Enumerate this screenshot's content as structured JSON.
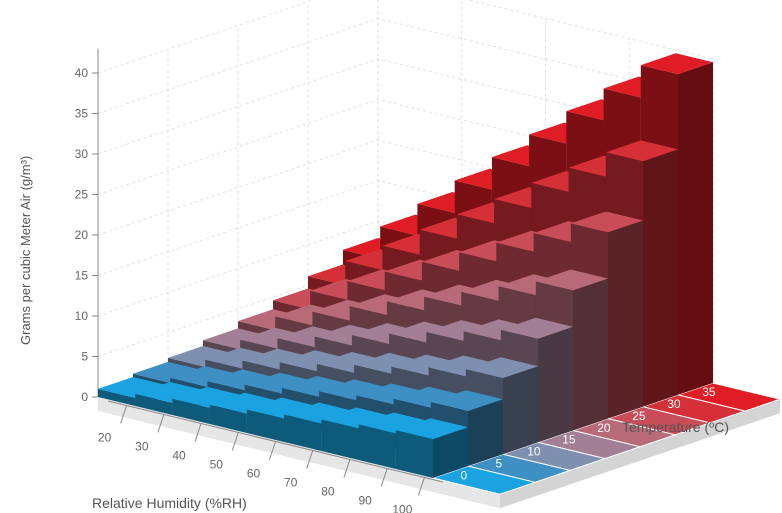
{
  "chart_data": {
    "type": "bar",
    "ylabel": "Grams per cubic Meter Air (g/m³)",
    "xlabel": "Relative Humidity (%RH)",
    "zlabel": "Temperature (ºC)",
    "ylim": [
      0,
      40
    ],
    "y_ticks": [
      "0",
      "5",
      "10",
      "15",
      "20",
      "25",
      "30",
      "35",
      "40"
    ],
    "categories": [
      "20",
      "30",
      "40",
      "50",
      "60",
      "70",
      "80",
      "90",
      "100"
    ],
    "series": [
      {
        "name": "0",
        "color": "#1aa3e0",
        "values": [
          1.0,
          1.5,
          2.0,
          2.4,
          2.9,
          3.4,
          3.9,
          4.4,
          4.8
        ]
      },
      {
        "name": "5",
        "color": "#3d8fc4",
        "values": [
          1.4,
          2.0,
          2.7,
          3.4,
          4.1,
          4.8,
          5.4,
          6.1,
          6.8
        ]
      },
      {
        "name": "10",
        "color": "#7f8fb0",
        "values": [
          1.9,
          2.8,
          3.8,
          4.7,
          5.6,
          6.6,
          7.5,
          8.5,
          9.4
        ]
      },
      {
        "name": "15",
        "color": "#a27f95",
        "values": [
          2.6,
          3.8,
          5.1,
          6.4,
          7.7,
          9.0,
          10.3,
          11.5,
          12.8
        ]
      },
      {
        "name": "20",
        "color": "#b86a78",
        "values": [
          3.5,
          5.2,
          6.9,
          8.7,
          10.4,
          12.1,
          13.8,
          15.6,
          17.3
        ]
      },
      {
        "name": "25",
        "color": "#c84d58",
        "values": [
          4.6,
          6.9,
          9.2,
          11.5,
          13.8,
          16.1,
          18.4,
          20.7,
          23.0
        ]
      },
      {
        "name": "30",
        "color": "#d52f37",
        "values": [
          6.1,
          9.1,
          12.1,
          15.2,
          18.2,
          21.2,
          24.3,
          27.3,
          30.3
        ]
      },
      {
        "name": "35",
        "color": "#e01c25",
        "values": [
          7.9,
          11.9,
          15.8,
          19.8,
          23.8,
          27.7,
          31.7,
          35.6,
          39.6
        ]
      }
    ],
    "grid": true,
    "legend": "none"
  }
}
